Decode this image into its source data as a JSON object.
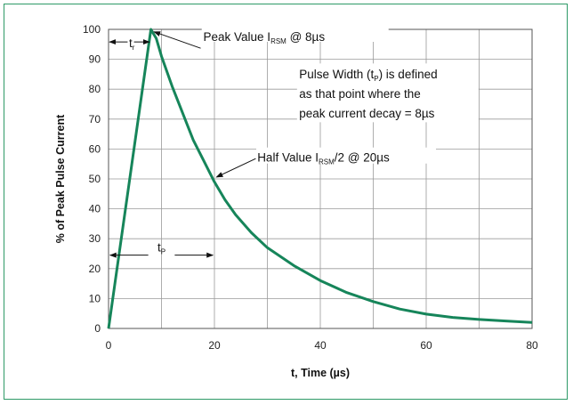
{
  "chart_data": {
    "type": "line",
    "xlabel": "t, Time (µs)",
    "ylabel": "% of Peak Pulse Current",
    "xlim": [
      0,
      80
    ],
    "ylim": [
      0,
      100
    ],
    "xticks": [
      0,
      20,
      40,
      60,
      80
    ],
    "yticks": [
      0,
      10,
      20,
      30,
      40,
      50,
      60,
      70,
      80,
      90,
      100
    ],
    "grid": true,
    "line_color": "#16855a",
    "series": [
      {
        "x": [
          0,
          8,
          9,
          10,
          12,
          14,
          16,
          18,
          20,
          22,
          24,
          27,
          30,
          35,
          40,
          45,
          50,
          55,
          60,
          65,
          70,
          75,
          80
        ],
        "y": [
          0,
          100,
          97,
          91,
          81,
          72,
          63,
          56,
          49,
          43,
          38,
          32,
          27,
          21,
          16,
          12,
          9,
          6.5,
          4.8,
          3.7,
          3,
          2.5,
          2
        ]
      }
    ],
    "annotations": {
      "tr": {
        "main": "t",
        "sub": "r"
      },
      "tp": {
        "main": "t",
        "sub": "P"
      },
      "peak": {
        "prefix": "Peak Value I",
        "sub": "RSM",
        "suffix": " @ 8µs"
      },
      "half": {
        "prefix": "Half Value I",
        "sub": "RSM",
        "suffix": "/2 @ 20µs"
      },
      "pulse_width": {
        "line1_prefix": "Pulse Width (t",
        "line1_sub": "P",
        "line1_suffix": ") is defined",
        "line2": "as that point where the",
        "line3": "peak current decay = 8µs"
      }
    }
  }
}
